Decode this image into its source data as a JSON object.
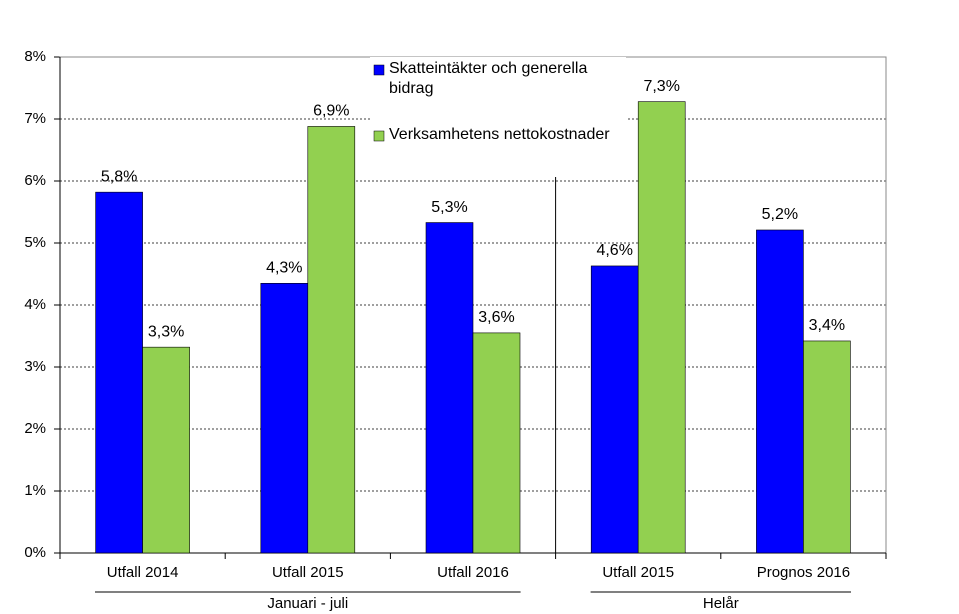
{
  "chart_data": {
    "type": "bar",
    "categories": [
      "Utfall 2014",
      "Utfall 2015",
      "Utfall 2016",
      "Utfall 2015",
      "Prognos 2016"
    ],
    "groups": [
      {
        "label": "Januari - juli",
        "span": 3
      },
      {
        "label": "Helår",
        "span": 2
      }
    ],
    "series": [
      {
        "name": "Skatteintäkter och generella bidrag",
        "color": "#0000ff",
        "values": [
          5.82,
          4.35,
          5.33,
          4.63,
          5.21
        ],
        "value_labels": [
          "5,8%",
          "4,3%",
          "5,3%",
          "4,6%",
          "5,2%"
        ]
      },
      {
        "name": "Verksamhetens nettokostnader",
        "color": "#92d050",
        "values": [
          3.32,
          6.88,
          3.55,
          7.28,
          3.42
        ],
        "value_labels": [
          "3,3%",
          "6,9%",
          "3,6%",
          "7,3%",
          "3,4%"
        ]
      }
    ],
    "ylim": [
      0,
      8
    ],
    "yticks": [
      {
        "value": 0,
        "label": "0%"
      },
      {
        "value": 1,
        "label": "1%"
      },
      {
        "value": 2,
        "label": "2%"
      },
      {
        "value": 3,
        "label": "3%"
      },
      {
        "value": 4,
        "label": "4%"
      },
      {
        "value": 5,
        "label": "5%"
      },
      {
        "value": 6,
        "label": "6%"
      },
      {
        "value": 7,
        "label": "7%"
      },
      {
        "value": 8,
        "label": "8%"
      }
    ],
    "grid": true
  }
}
